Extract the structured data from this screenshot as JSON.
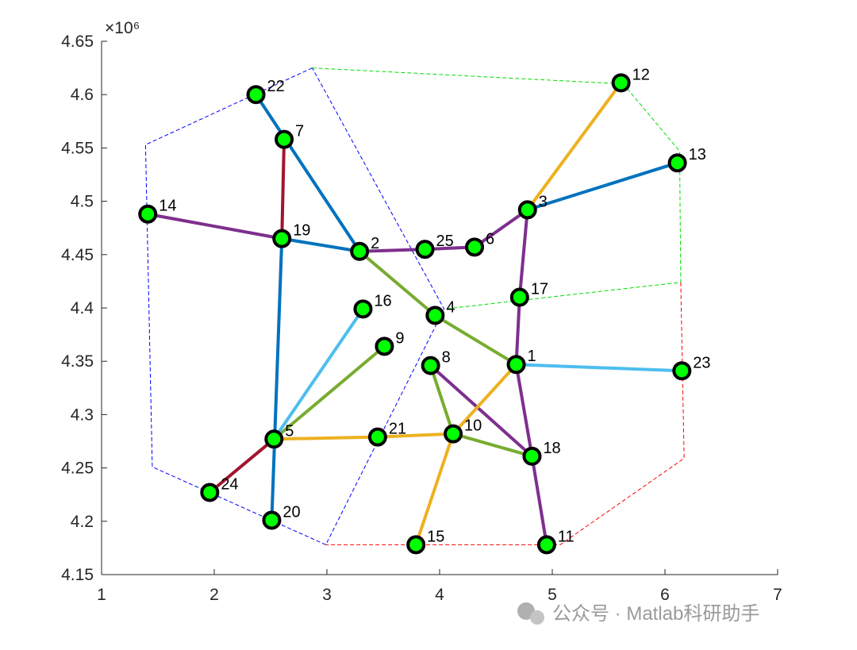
{
  "chart_data": {
    "type": "network",
    "axis_multiplier": "×10⁶",
    "xlim": [
      1,
      7
    ],
    "xticks": [
      1,
      2,
      3,
      4,
      5,
      6,
      7
    ],
    "ylim": [
      4.15,
      4.65
    ],
    "yticks": [
      4.15,
      4.2,
      4.25,
      4.3,
      4.35,
      4.4,
      4.45,
      4.5,
      4.55,
      4.6,
      4.65
    ],
    "node_color": "#00ff00",
    "nodes": [
      {
        "label": "1",
        "x": 4.68,
        "y": 4.347
      },
      {
        "label": "2",
        "x": 3.29,
        "y": 4.453
      },
      {
        "label": "3",
        "x": 4.78,
        "y": 4.492
      },
      {
        "label": "4",
        "x": 3.96,
        "y": 4.393
      },
      {
        "label": "5",
        "x": 2.53,
        "y": 4.277
      },
      {
        "label": "6",
        "x": 4.31,
        "y": 4.457
      },
      {
        "label": "7",
        "x": 2.62,
        "y": 4.558
      },
      {
        "label": "8",
        "x": 3.92,
        "y": 4.346
      },
      {
        "label": "9",
        "x": 3.51,
        "y": 4.364
      },
      {
        "label": "10",
        "x": 4.12,
        "y": 4.282
      },
      {
        "label": "11",
        "x": 4.95,
        "y": 4.178
      },
      {
        "label": "12",
        "x": 5.61,
        "y": 4.611
      },
      {
        "label": "13",
        "x": 6.11,
        "y": 4.536
      },
      {
        "label": "14",
        "x": 1.41,
        "y": 4.488
      },
      {
        "label": "15",
        "x": 3.79,
        "y": 4.178
      },
      {
        "label": "16",
        "x": 3.32,
        "y": 4.399
      },
      {
        "label": "17",
        "x": 4.71,
        "y": 4.41
      },
      {
        "label": "18",
        "x": 4.82,
        "y": 4.261
      },
      {
        "label": "19",
        "x": 2.6,
        "y": 4.465
      },
      {
        "label": "20",
        "x": 2.51,
        "y": 4.201
      },
      {
        "label": "21",
        "x": 3.45,
        "y": 4.279
      },
      {
        "label": "22",
        "x": 2.37,
        "y": 4.6
      },
      {
        "label": "23",
        "x": 6.15,
        "y": 4.341
      },
      {
        "label": "24",
        "x": 1.96,
        "y": 4.227
      },
      {
        "label": "25",
        "x": 3.87,
        "y": 4.455
      }
    ],
    "edges": [
      {
        "from": 21,
        "to": 1,
        "color": "#0072bd"
      },
      {
        "from": 18,
        "to": 1,
        "color": "#0072bd"
      },
      {
        "from": 18,
        "to": 19,
        "color": "#0072bd"
      },
      {
        "from": 2,
        "to": 12,
        "color": "#0072bd"
      },
      {
        "from": 6,
        "to": 18,
        "color": "#a2142f"
      },
      {
        "from": 4,
        "to": 23,
        "color": "#a2142f"
      },
      {
        "from": 13,
        "to": 18,
        "color": "#7e2f8e"
      },
      {
        "from": 1,
        "to": 24,
        "color": "#7e2f8e"
      },
      {
        "from": 24,
        "to": 5,
        "color": "#7e2f8e"
      },
      {
        "from": 5,
        "to": 2,
        "color": "#7e2f8e"
      },
      {
        "from": 2,
        "to": 16,
        "color": "#7e2f8e"
      },
      {
        "from": 16,
        "to": 0,
        "color": "#7e2f8e"
      },
      {
        "from": 0,
        "to": 17,
        "color": "#7e2f8e"
      },
      {
        "from": 17,
        "to": 10,
        "color": "#7e2f8e"
      },
      {
        "from": 7,
        "to": 17,
        "color": "#7e2f8e"
      },
      {
        "from": 1,
        "to": 3,
        "color": "#77ac30"
      },
      {
        "from": 3,
        "to": 0,
        "color": "#77ac30"
      },
      {
        "from": 4,
        "to": 8,
        "color": "#77ac30"
      },
      {
        "from": 7,
        "to": 9,
        "color": "#77ac30"
      },
      {
        "from": 9,
        "to": 17,
        "color": "#77ac30"
      },
      {
        "from": 4,
        "to": 15,
        "color": "#4dbeee"
      },
      {
        "from": 0,
        "to": 22,
        "color": "#4dbeee"
      },
      {
        "from": 11,
        "to": 2,
        "color": "#edb120"
      },
      {
        "from": 0,
        "to": 9,
        "color": "#edb120"
      },
      {
        "from": 9,
        "to": 14,
        "color": "#edb120"
      },
      {
        "from": 4,
        "to": 20,
        "color": "#edb120"
      },
      {
        "from": 20,
        "to": 9,
        "color": "#edb120"
      }
    ],
    "regions": [
      {
        "color": "#0000ff",
        "x": [
          2.87,
          1.39,
          1.45,
          2.99,
          4.04,
          2.87
        ],
        "y": [
          4.625,
          4.553,
          4.251,
          4.178,
          4.399,
          4.625
        ]
      },
      {
        "color": "#00dd00",
        "x": [
          2.87,
          5.63,
          6.13,
          6.14,
          4.04
        ],
        "y": [
          4.625,
          4.61,
          4.547,
          4.424,
          4.399
        ]
      },
      {
        "color": "#ff0000",
        "x": [
          6.14,
          6.17,
          5.07,
          2.99
        ],
        "y": [
          4.424,
          4.259,
          4.178,
          4.178
        ]
      }
    ]
  },
  "watermark": "公众号 · Matlab科研助手"
}
